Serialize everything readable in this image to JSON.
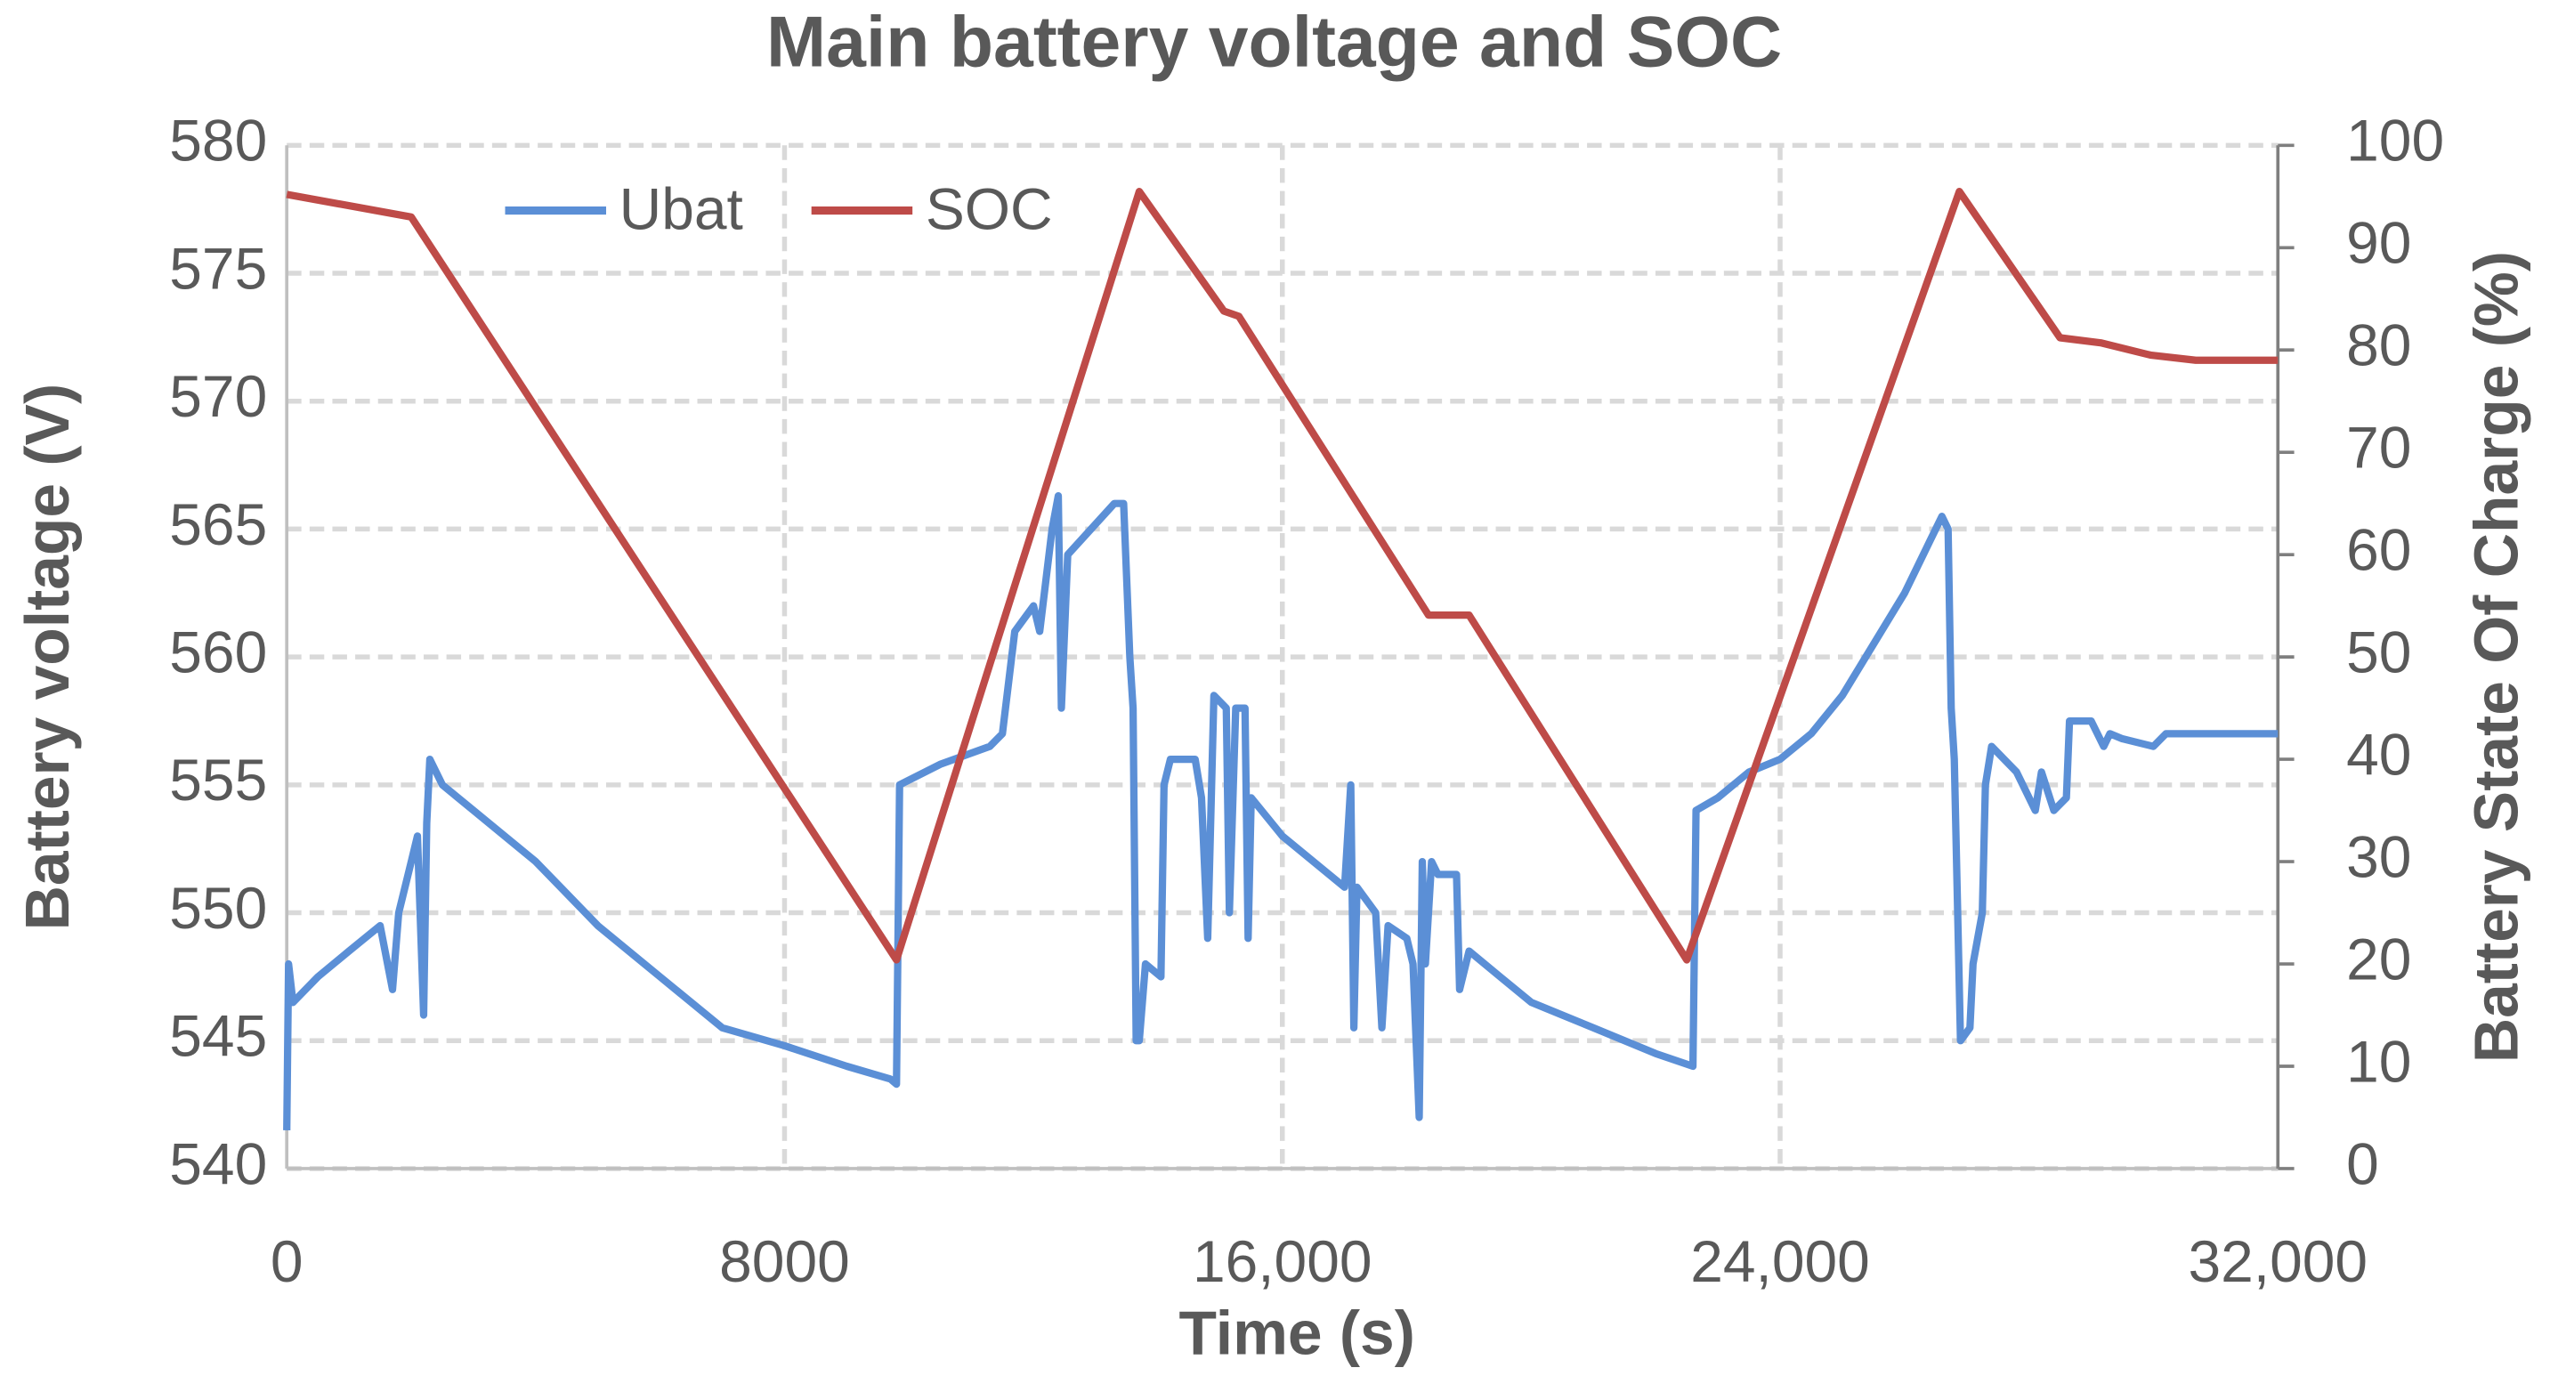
{
  "chart_data": {
    "type": "line",
    "title": "Main battery voltage and SOC",
    "xlabel": "Time (s)",
    "ylabel": "Battery voltage (V)",
    "y2label": "Battery State Of Charge (%)",
    "xlim": [
      0,
      32000
    ],
    "xticks": [
      0,
      8000,
      {
        "value": 16000,
        "label": "16,000"
      },
      {
        "value": 24000,
        "label": "24,000"
      },
      {
        "value": 32000,
        "label": "32,000"
      }
    ],
    "ylim": [
      540,
      580
    ],
    "yticks": [
      540,
      545,
      550,
      555,
      560,
      565,
      570,
      575,
      580
    ],
    "y2lim": [
      0,
      100
    ],
    "y2ticks": [
      0,
      10,
      20,
      30,
      40,
      50,
      60,
      70,
      80,
      90,
      100
    ],
    "grid": true,
    "legend": "top",
    "series": [
      {
        "name": "Ubat",
        "color": "#5b8fd6",
        "axis": "y",
        "x": [
          0,
          30,
          100,
          500,
          1000,
          1500,
          1700,
          1800,
          2000,
          2100,
          2200,
          2250,
          2300,
          2500,
          3000,
          4000,
          5000,
          6000,
          7000,
          8000,
          9000,
          9700,
          9800,
          9850,
          10500,
          11300,
          11500,
          11700,
          12000,
          12100,
          12300,
          12400,
          12450,
          12550,
          13300,
          13450,
          13550,
          13600,
          13650,
          13700,
          13800,
          14050,
          14100,
          14200,
          14600,
          14700,
          14800,
          14900,
          15100,
          15150,
          15250,
          15400,
          15450,
          15500,
          16000,
          17000,
          17100,
          17150,
          17200,
          17500,
          17600,
          17700,
          18000,
          18100,
          18200,
          18250,
          18300,
          18400,
          18500,
          18800,
          18850,
          19000,
          19500,
          20000,
          21000,
          22000,
          22600,
          22650,
          23000,
          23500,
          24000,
          24500,
          25000,
          25500,
          26000,
          26400,
          26600,
          26700,
          26750,
          26800,
          26900,
          27050,
          27100,
          27250,
          27300,
          27400,
          27800,
          28100,
          28200,
          28400,
          28600,
          28650,
          29000,
          29200,
          29300,
          29500,
          30000,
          30200,
          32000
        ],
        "values": [
          541.5,
          548,
          546.5,
          547.5,
          548.5,
          549.5,
          547,
          550,
          552,
          553,
          546,
          553.5,
          556,
          555,
          554,
          552,
          549.5,
          547.5,
          545.5,
          544.8,
          544,
          543.5,
          543.3,
          555,
          555.8,
          556.5,
          557,
          561,
          562,
          561,
          565,
          566.3,
          558,
          564,
          566,
          566,
          560,
          558,
          545,
          545,
          548,
          547.5,
          555,
          556,
          556,
          554.5,
          549,
          558.5,
          558,
          550,
          558,
          558,
          549,
          554.5,
          553,
          551,
          555,
          545.5,
          551,
          550,
          545.5,
          549.5,
          549,
          548,
          542,
          552,
          548,
          552,
          551.5,
          551.5,
          547,
          548.5,
          547.5,
          546.5,
          545.5,
          544.5,
          544,
          554,
          554.5,
          555.5,
          556,
          557,
          558.5,
          560.5,
          562.5,
          564.5,
          565.5,
          565,
          558,
          556,
          545,
          545.5,
          548,
          550,
          555,
          556.5,
          555.5,
          554,
          555.5,
          554,
          554.5,
          557.5,
          557.5,
          556.5,
          557,
          556.8,
          556.5,
          557,
          557
        ]
      },
      {
        "name": "SOC",
        "color": "#be4b48",
        "axis": "y2",
        "x": [
          0,
          2000,
          9800,
          13700,
          15060,
          15300,
          18350,
          19000,
          22500,
          26880,
          28500,
          29150,
          29950,
          30680,
          32000
        ],
        "values": [
          95.2,
          93,
          20.4,
          95.5,
          83.8,
          83.3,
          54.1,
          54.1,
          20.4,
          95.5,
          81.2,
          80.7,
          79.5,
          79,
          79
        ]
      }
    ]
  }
}
